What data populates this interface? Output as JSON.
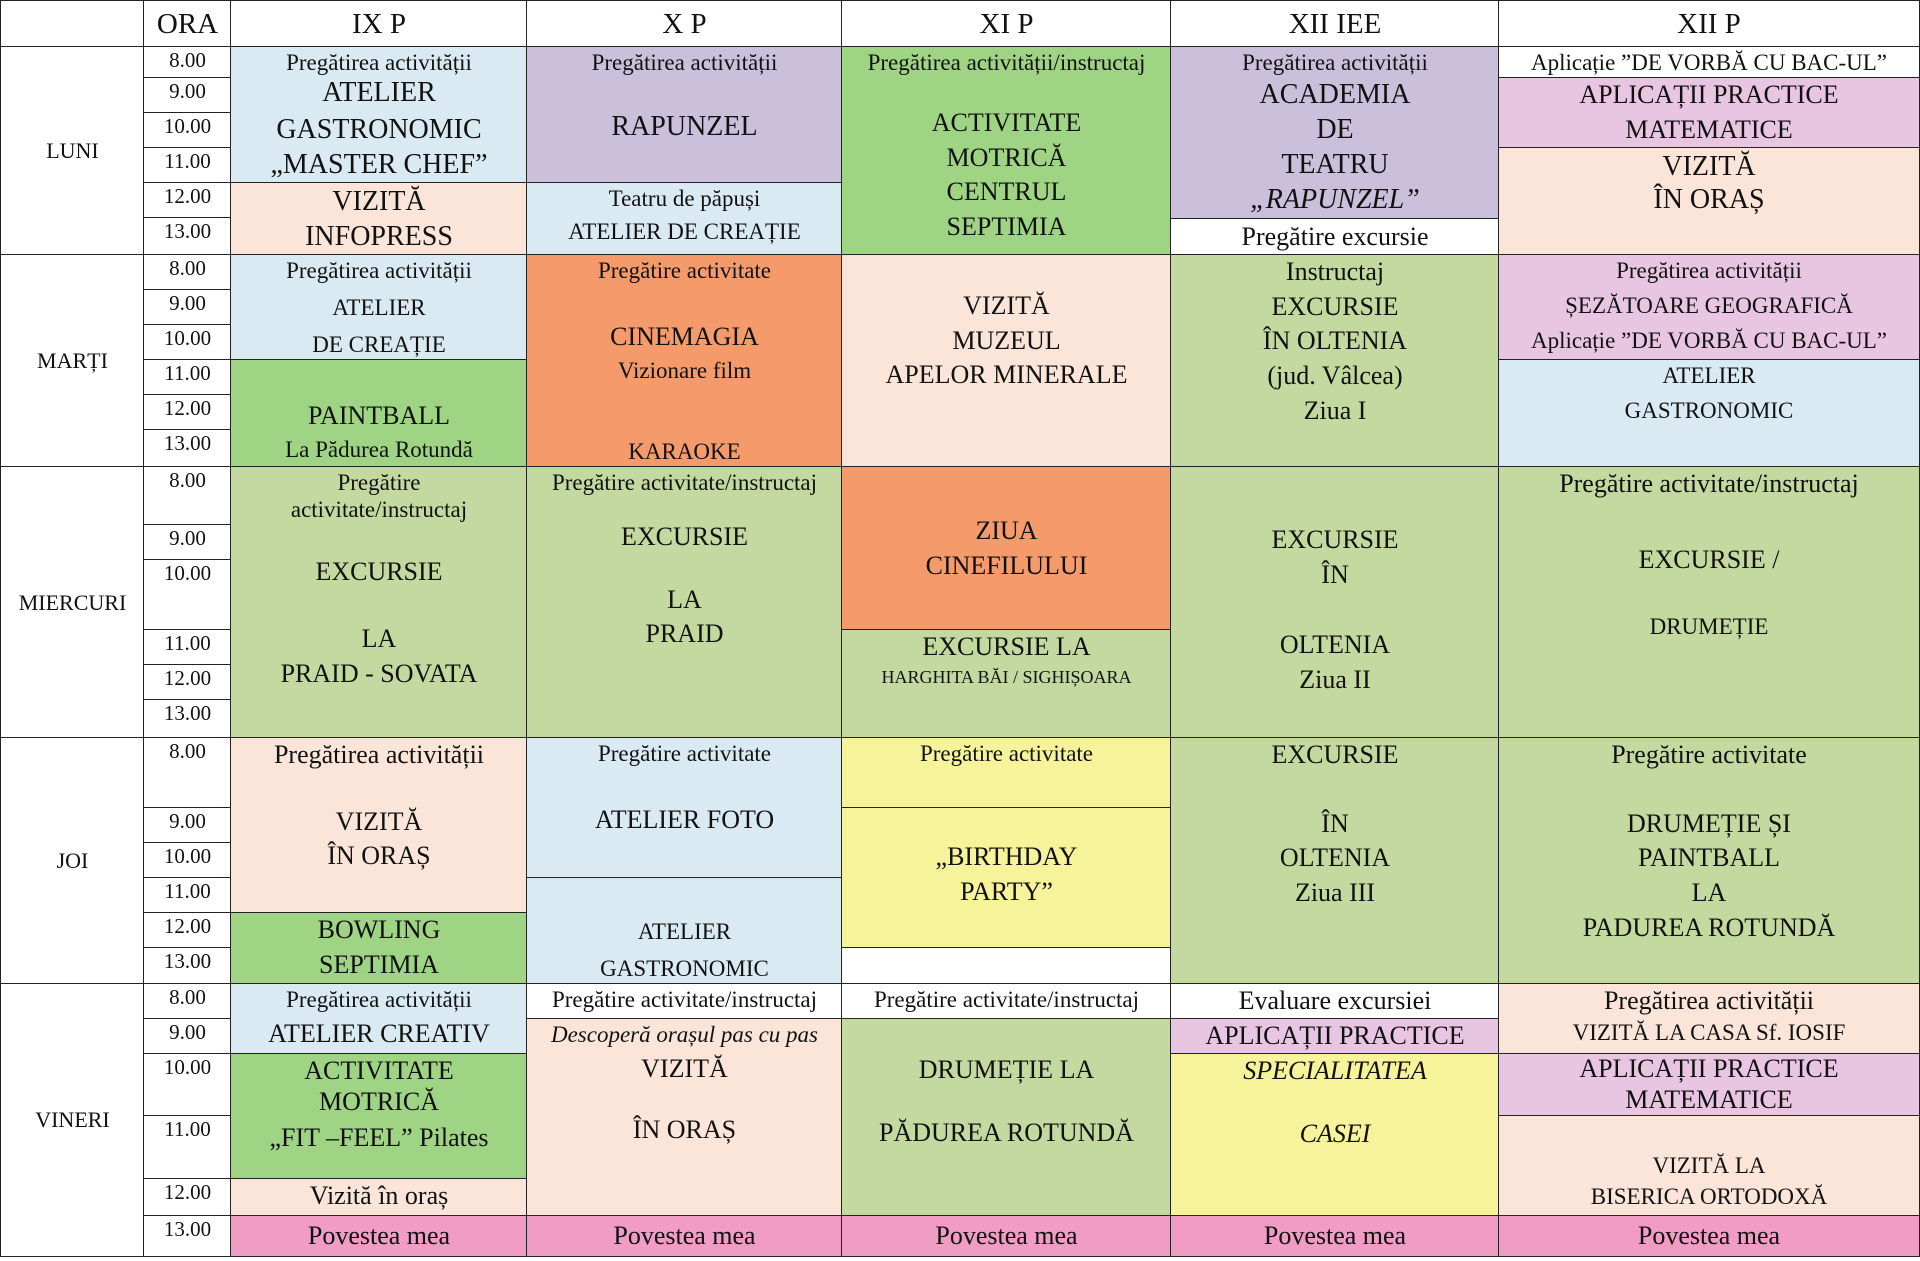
{
  "header": {
    "ora": "ORA",
    "classes": [
      "IX P",
      "X P",
      "XI P",
      "XII IEE",
      "XII P"
    ]
  },
  "days": [
    "LUNI",
    "MARȚI",
    "MIERCURI",
    "JOI",
    "VINERI"
  ],
  "times": [
    "8.00",
    "9.00",
    "10.00",
    "11.00",
    "12.00",
    "13.00"
  ],
  "schedule": {
    "luni": {
      "ix_p": [
        {
          "color": "blue",
          "lines": [
            "Pregătirea activității",
            "ATELIER",
            "GASTRONOMIC",
            "„MASTER CHEF”"
          ]
        },
        {
          "color": "peach",
          "lines": [
            "VIZITĂ",
            "INFOPRESS"
          ]
        }
      ],
      "x_p": [
        {
          "color": "purple",
          "lines": [
            "Pregătirea activității",
            "RAPUNZEL"
          ]
        },
        {
          "color": "blue",
          "lines": [
            "Teatru de păpuși",
            "ATELIER DE CREAȚIE"
          ]
        }
      ],
      "xi_p": [
        {
          "color": "green1",
          "lines": [
            "Pregătirea activității/instructaj",
            "ACTIVITATE",
            "MOTRICĂ",
            "CENTRUL",
            "SEPTIMIA"
          ]
        }
      ],
      "xii_iee": [
        {
          "color": "purple",
          "lines": [
            "Pregătirea activității",
            "ACADEMIA",
            "DE",
            "TEATRU",
            "„RAPUNZEL”"
          ]
        },
        {
          "color": "white",
          "lines": [
            "Pregătire excursie"
          ]
        }
      ],
      "xii_p": [
        {
          "color": "white",
          "lines": [
            "Aplicație ”DE VORBĂ CU BAC-UL”"
          ]
        },
        {
          "color": "pink",
          "lines": [
            "APLICAȚII PRACTICE",
            "MATEMATICE"
          ]
        },
        {
          "color": "peach",
          "lines": [
            "VIZITĂ",
            "ÎN ORAȘ"
          ]
        }
      ]
    },
    "marti": {
      "ix_p": [
        {
          "color": "blue",
          "lines": [
            "Pregătirea activității",
            "ATELIER",
            "DE CREAȚIE"
          ]
        },
        {
          "color": "green1",
          "lines": [
            "PAINTBALL",
            "La Pădurea Rotundă"
          ]
        }
      ],
      "x_p": [
        {
          "color": "orange",
          "lines": [
            "Pregătire activitate",
            "CINEMAGIA",
            "Vizionare film",
            "KARAOKE"
          ]
        }
      ],
      "xi_p": [
        {
          "color": "peach",
          "lines": [
            "VIZITĂ",
            "MUZEUL",
            "APELOR MINERALE"
          ]
        }
      ],
      "xii_iee": [
        {
          "color": "green2",
          "lines": [
            "Instructaj",
            "EXCURSIE",
            "ÎN OLTENIA",
            "(jud. Vâlcea)",
            "Ziua I"
          ]
        }
      ],
      "xii_p": [
        {
          "color": "pink",
          "lines": [
            "Pregătirea activității",
            "ȘEZĂTOARE GEOGRAFICĂ",
            "Aplicație ”DE VORBĂ CU BAC-UL”"
          ]
        },
        {
          "color": "blue",
          "lines": [
            "ATELIER",
            "GASTRONOMIC"
          ]
        }
      ]
    },
    "miercuri": {
      "ix_p": [
        {
          "color": "green2",
          "lines": [
            "Pregătire",
            "activitate/instructaj",
            "EXCURSIE",
            "LA",
            "PRAID - SOVATA"
          ]
        }
      ],
      "x_p": [
        {
          "color": "green2",
          "lines": [
            "Pregătire activitate/instructaj",
            "EXCURSIE",
            "LA",
            "PRAID"
          ]
        }
      ],
      "xi_p": [
        {
          "color": "orange",
          "lines": [
            "ZIUA",
            "CINEFILULUI"
          ]
        },
        {
          "color": "green2",
          "lines": [
            "EXCURSIE LA",
            "HARGHITA BĂI / SIGHIȘOARA"
          ]
        }
      ],
      "xii_iee": [
        {
          "color": "green2",
          "lines": [
            "EXCURSIE",
            "ÎN",
            "OLTENIA",
            "Ziua II"
          ]
        }
      ],
      "xii_p": [
        {
          "color": "green2",
          "lines": [
            "Pregătire activitate/instructaj",
            "EXCURSIE /",
            "DRUMEȚIE"
          ]
        }
      ]
    },
    "joi": {
      "ix_p": [
        {
          "color": "peach",
          "lines": [
            "Pregătirea activității",
            "VIZITĂ",
            "ÎN ORAȘ"
          ]
        },
        {
          "color": "green1",
          "lines": [
            "BOWLING",
            "SEPTIMIA"
          ]
        }
      ],
      "x_p": [
        {
          "color": "blue",
          "lines": [
            "Pregătire activitate",
            "ATELIER FOTO"
          ]
        },
        {
          "color": "blue",
          "lines": [
            "ATELIER",
            "GASTRONOMIC"
          ]
        }
      ],
      "xi_p": [
        {
          "color": "yellow",
          "lines": [
            "Pregătire activitate"
          ]
        },
        {
          "color": "yellow",
          "lines": [
            "„BIRTHDAY",
            "PARTY”"
          ]
        },
        {
          "color": "white",
          "lines": []
        }
      ],
      "xii_iee": [
        {
          "color": "green2",
          "lines": [
            "EXCURSIE",
            "ÎN",
            "OLTENIA",
            "Ziua III"
          ]
        }
      ],
      "xii_p": [
        {
          "color": "green2",
          "lines": [
            "Pregătire activitate",
            "DRUMEȚIE ȘI",
            "PAINTBALL",
            "LA",
            "PADUREA ROTUNDĂ"
          ]
        }
      ]
    },
    "vineri": {
      "ix_p": [
        {
          "color": "blue",
          "lines": [
            "Pregătirea activității",
            "ATELIER CREATIV"
          ]
        },
        {
          "color": "green1",
          "lines": [
            "ACTIVITATE",
            "MOTRICĂ",
            "„FIT –FEEL” Pilates"
          ]
        },
        {
          "color": "peach",
          "lines": [
            "Vizită în oraș"
          ]
        }
      ],
      "x_p": [
        {
          "color": "white",
          "lines": [
            "Pregătire activitate/instructaj"
          ]
        },
        {
          "color": "peach",
          "lines": [
            "Descoperă orașul pas cu pas",
            "VIZITĂ",
            "ÎN ORAȘ"
          ]
        }
      ],
      "xi_p": [
        {
          "color": "white",
          "lines": [
            "Pregătire activitate/instructaj"
          ]
        },
        {
          "color": "green2",
          "lines": [
            "DRUMEȚIE LA",
            "PĂDUREA ROTUNDĂ"
          ]
        }
      ],
      "xii_iee": [
        {
          "color": "white",
          "lines": [
            "Evaluare excursiei"
          ]
        },
        {
          "color": "pink",
          "lines": [
            "APLICAȚII PRACTICE"
          ]
        },
        {
          "color": "yellow",
          "lines": [
            "SPECIALITATEA",
            "CASEI"
          ]
        }
      ],
      "xii_p": [
        {
          "color": "peach",
          "lines": [
            "Pregătirea activității",
            "VIZITĂ LA CASA Sf. IOSIF"
          ]
        },
        {
          "color": "pink",
          "lines": [
            "APLICAȚII PRACTICE",
            "MATEMATICE"
          ]
        },
        {
          "color": "peach",
          "lines": [
            "VIZITĂ LA",
            "BISERICA ORTODOXĂ"
          ]
        }
      ]
    },
    "povestea": "Povestea mea"
  }
}
